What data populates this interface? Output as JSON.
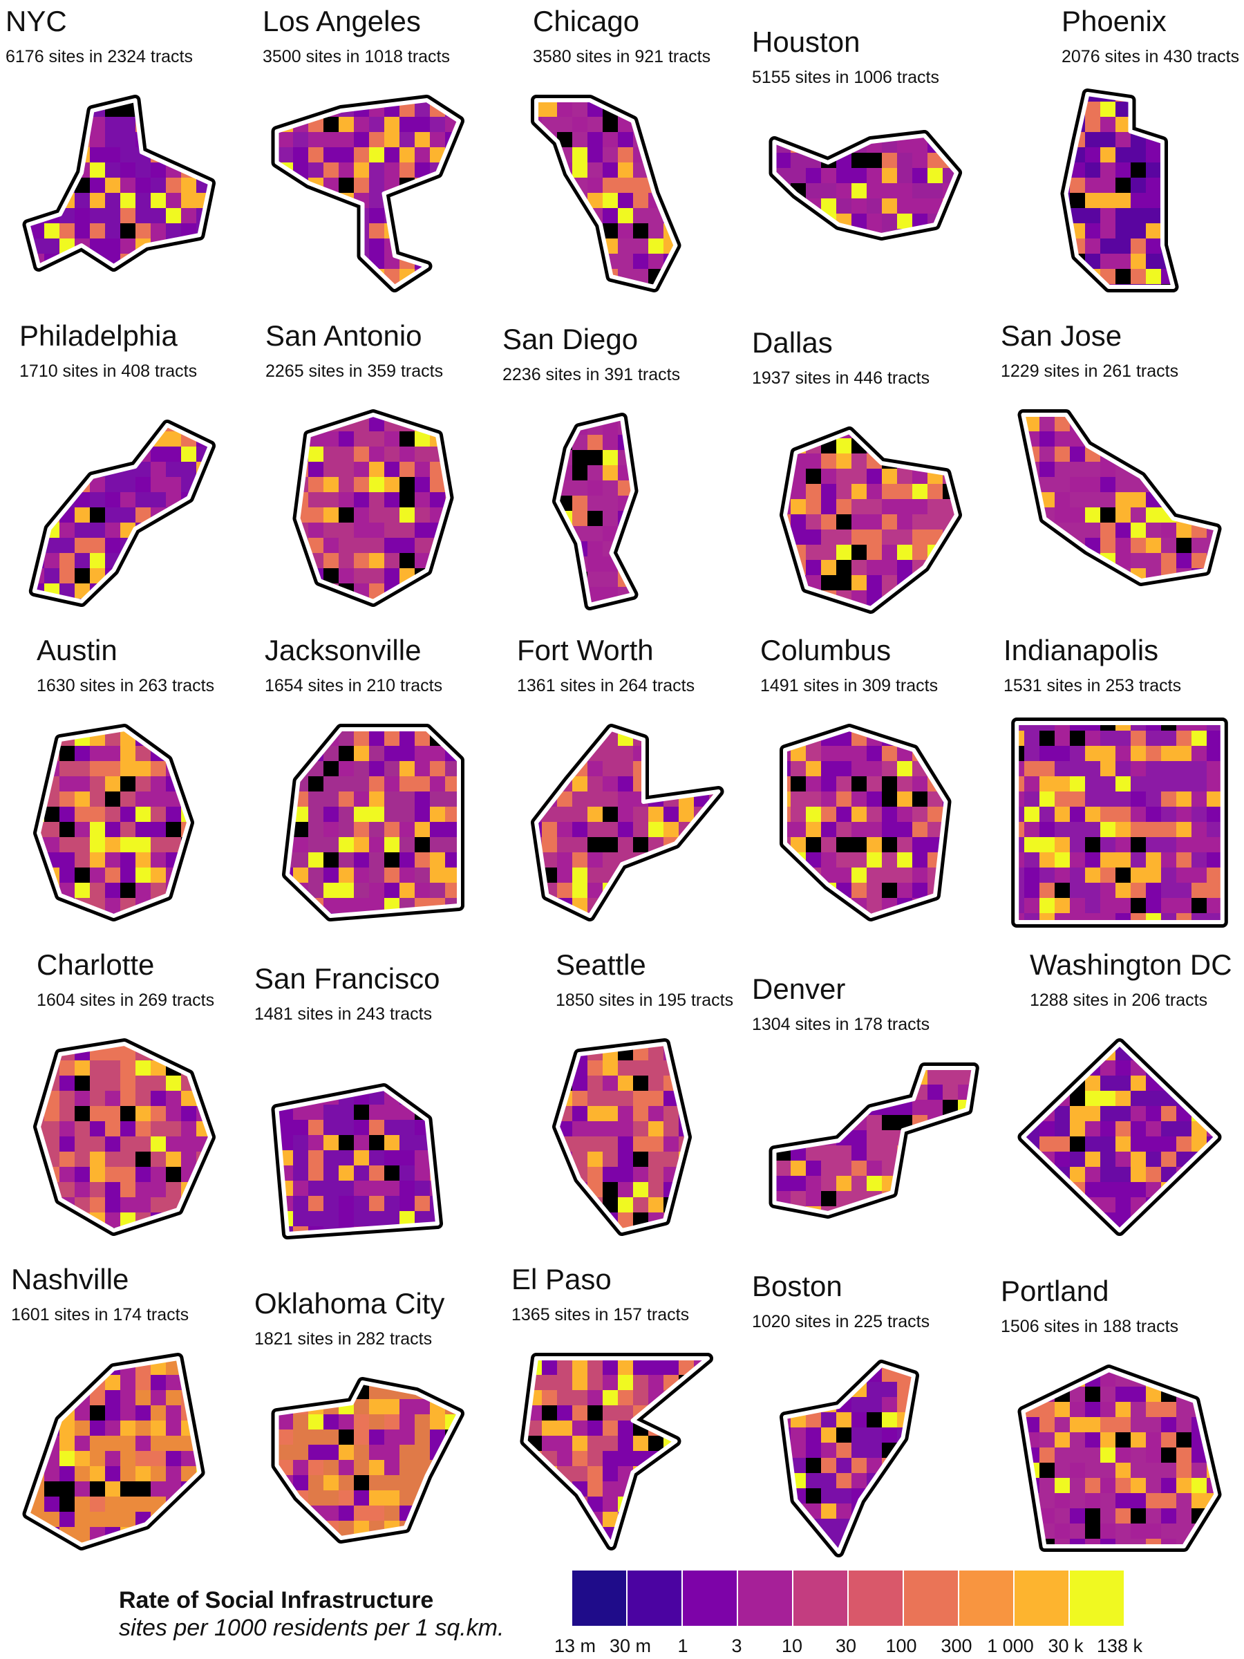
{
  "cities": [
    {
      "name": "NYC",
      "subtitle": "6176 sites in 2324 tracts",
      "dominant": "#7a0fa8"
    },
    {
      "name": "Los Angeles",
      "subtitle": "3500 sites in 1018 tracts",
      "dominant": "#8c1aa5"
    },
    {
      "name": "Chicago",
      "subtitle": "3580 sites in 921 tracts",
      "dominant": "#a82896"
    },
    {
      "name": "Houston",
      "subtitle": "5155 sites in 1006 tracts",
      "dominant": "#9a2099"
    },
    {
      "name": "Phoenix",
      "subtitle": "2076 sites in 430 tracts",
      "dominant": "#5a05a0"
    },
    {
      "name": "Philadelphia",
      "subtitle": "1710 sites in 408 tracts",
      "dominant": "#7a0fa8"
    },
    {
      "name": "San Antonio",
      "subtitle": "2265 sites in 359 tracts",
      "dominant": "#b33388"
    },
    {
      "name": "San Diego",
      "subtitle": "2236 sites in 391 tracts",
      "dominant": "#a82896"
    },
    {
      "name": "Dallas",
      "subtitle": "1937 sites in 446 tracts",
      "dominant": "#b8388a"
    },
    {
      "name": "San Jose",
      "subtitle": "1229 sites in 261 tracts",
      "dominant": "#a82896"
    },
    {
      "name": "Austin",
      "subtitle": "1630 sites in 263 tracts",
      "dominant": "#c64a74"
    },
    {
      "name": "Jacksonville",
      "subtitle": "1654 sites in 210 tracts",
      "dominant": "#a32d90"
    },
    {
      "name": "Fort Worth",
      "subtitle": "1361 sites in 264 tracts",
      "dominant": "#b33388"
    },
    {
      "name": "Columbus",
      "subtitle": "1491 sites in 309 tracts",
      "dominant": "#b8388a"
    },
    {
      "name": "Indianapolis",
      "subtitle": "1531 sites in 253 tracts",
      "dominant": "#8c1aa5"
    },
    {
      "name": "Charlotte",
      "subtitle": "1604 sites in 269 tracts",
      "dominant": "#c64a74"
    },
    {
      "name": "San Francisco",
      "subtitle": "1481 sites in 243 tracts",
      "dominant": "#7a0fa8"
    },
    {
      "name": "Seattle",
      "subtitle": "1850 sites in 195 tracts",
      "dominant": "#c64a74"
    },
    {
      "name": "Denver",
      "subtitle": "1304 sites in 178 tracts",
      "dominant": "#b8388a"
    },
    {
      "name": "Washington DC",
      "subtitle": "1288 sites in 206 tracts",
      "dominant": "#6a0aa5"
    },
    {
      "name": "Nashville",
      "subtitle": "1601 sites in 174 tracts",
      "dominant": "#eb8a3c"
    },
    {
      "name": "Oklahoma City",
      "subtitle": "1821 sites in 282 tracts",
      "dominant": "#e07a48"
    },
    {
      "name": "El Paso",
      "subtitle": "1365 sites in 157 tracts",
      "dominant": "#c64a74"
    },
    {
      "name": "Boston",
      "subtitle": "1020 sites in 225 tracts",
      "dominant": "#7a0fa8"
    },
    {
      "name": "Portland",
      "subtitle": "1506 sites in 188 tracts",
      "dominant": "#a82896"
    }
  ],
  "legend": {
    "title": "Rate of Social Infrastructure",
    "subtitle": "sites per 1000 residents per 1 sq.km.",
    "colors": [
      "#1f0c8a",
      "#4b03a1",
      "#7d03a8",
      "#a62098",
      "#c33d80",
      "#d9586a",
      "#ea7457",
      "#f89540",
      "#fdb42f",
      "#f0f921"
    ],
    "ticks": [
      "13 m",
      "30 m",
      "1",
      "3",
      "10",
      "30",
      "100",
      "300",
      "1 000",
      "30 k",
      "138 k"
    ]
  }
}
